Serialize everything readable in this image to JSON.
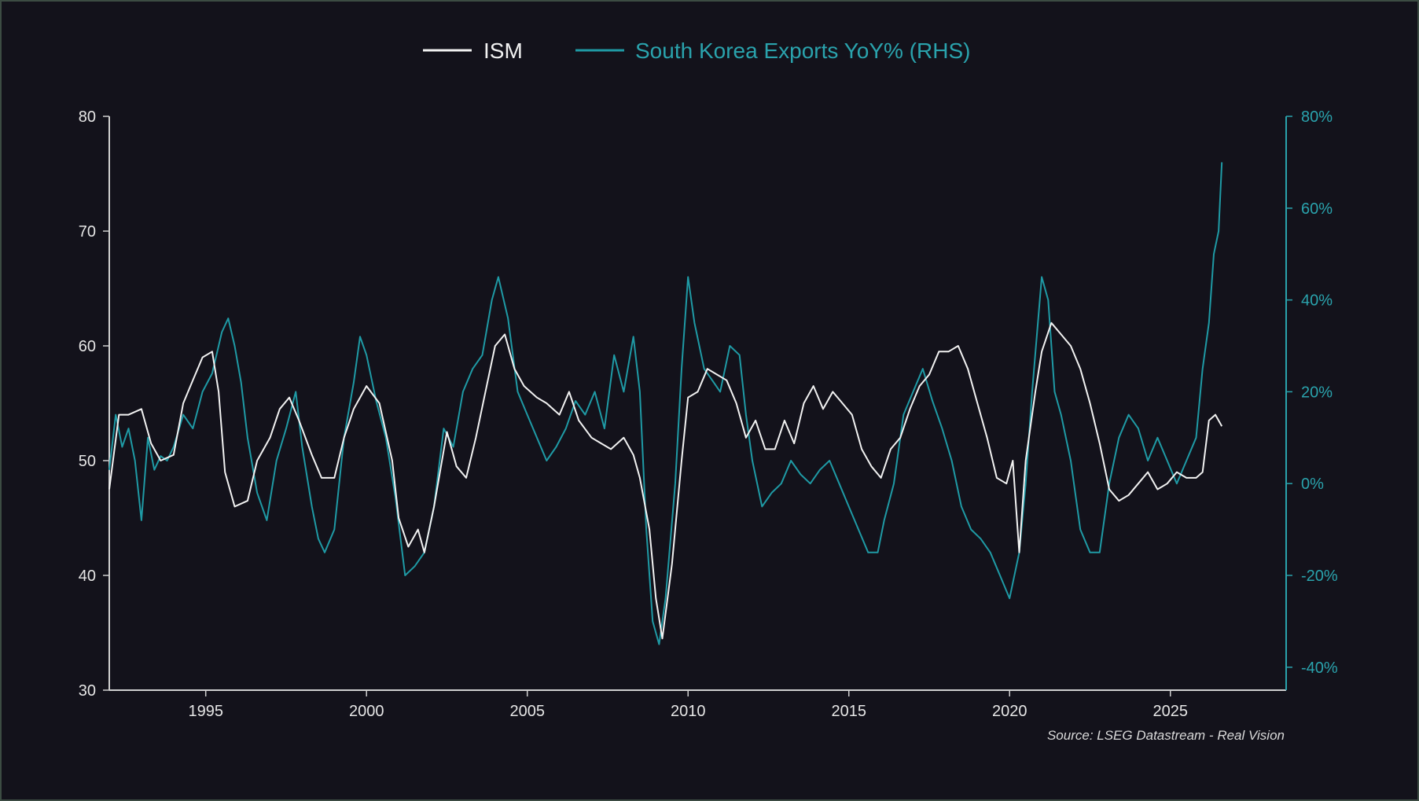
{
  "chart_data": {
    "type": "line",
    "title": "",
    "legend": {
      "position": "top-center",
      "items": [
        "ISM",
        "South Korea Exports YoY% (RHS)"
      ]
    },
    "x_axis": {
      "range": [
        1992.0,
        2028.6
      ],
      "ticks": [
        "1995",
        "2000",
        "2005",
        "2010",
        "2015",
        "2020",
        "2025"
      ]
    },
    "y_left": {
      "range": [
        30,
        80
      ],
      "ticks": [
        "80",
        "70",
        "60",
        "50",
        "40",
        "30"
      ]
    },
    "y_right": {
      "range": [
        -45,
        80
      ],
      "ticks": [
        "80%",
        "60%",
        "40%",
        "20%",
        "0%",
        "-20%",
        "-40%"
      ]
    },
    "source": "Source: LSEG Datastream - Real Vision",
    "colors": {
      "background": "#13121b",
      "ism": "#f2f2f2",
      "korea": "#1f9aa5",
      "axis_left": "#d0d0d0",
      "axis_right": "#2aa3ad"
    },
    "series": [
      {
        "name": "ISM",
        "axis": "left",
        "x": [
          1992.0,
          1992.3,
          1992.6,
          1993.0,
          1993.3,
          1993.6,
          1994.0,
          1994.3,
          1994.6,
          1994.9,
          1995.2,
          1995.4,
          1995.6,
          1995.9,
          1996.3,
          1996.6,
          1997.0,
          1997.3,
          1997.6,
          1997.9,
          1998.3,
          1998.6,
          1999.0,
          1999.3,
          1999.6,
          2000.0,
          2000.4,
          2000.8,
          2001.0,
          2001.3,
          2001.6,
          2001.8,
          2002.1,
          2002.5,
          2002.8,
          2003.1,
          2003.4,
          2003.7,
          2004.0,
          2004.3,
          2004.6,
          2004.9,
          2005.3,
          2005.6,
          2006.0,
          2006.3,
          2006.6,
          2007.0,
          2007.3,
          2007.6,
          2008.0,
          2008.3,
          2008.5,
          2008.8,
          2009.0,
          2009.2,
          2009.5,
          2009.8,
          2010.0,
          2010.3,
          2010.6,
          2010.9,
          2011.2,
          2011.5,
          2011.8,
          2012.1,
          2012.4,
          2012.7,
          2013.0,
          2013.3,
          2013.6,
          2013.9,
          2014.2,
          2014.5,
          2014.8,
          2015.1,
          2015.4,
          2015.7,
          2016.0,
          2016.3,
          2016.6,
          2016.9,
          2017.2,
          2017.5,
          2017.8,
          2018.1,
          2018.4,
          2018.7,
          2019.0,
          2019.3,
          2019.6,
          2019.9,
          2020.1,
          2020.3,
          2020.5,
          2020.8,
          2021.0,
          2021.3,
          2021.6,
          2021.9,
          2022.2,
          2022.5,
          2022.8,
          2023.1,
          2023.4,
          2023.7,
          2024.0,
          2024.3,
          2024.6,
          2024.9,
          2025.2,
          2025.5,
          2025.8,
          2026.0,
          2026.2,
          2026.4,
          2026.6
        ],
        "y": [
          47.5,
          54,
          54,
          54.5,
          51.5,
          50,
          50.5,
          55,
          57,
          59,
          59.5,
          56,
          49,
          46,
          46.5,
          50,
          52,
          54.5,
          55.5,
          53.5,
          50.5,
          48.5,
          48.5,
          52,
          54.5,
          56.5,
          55,
          50,
          45,
          42.5,
          44,
          42,
          46,
          52.5,
          49.5,
          48.5,
          52,
          56,
          60,
          61,
          58,
          56.5,
          55.5,
          55,
          54,
          56,
          53.5,
          52,
          51.5,
          51,
          52,
          50.5,
          48.5,
          44,
          38,
          34.5,
          41,
          50,
          55.5,
          56,
          58,
          57.5,
          57,
          55,
          52,
          53.5,
          51,
          51,
          53.5,
          51.5,
          55,
          56.5,
          54.5,
          56,
          55,
          54,
          51,
          49.5,
          48.5,
          51,
          52,
          54.5,
          56.5,
          57.5,
          59.5,
          59.5,
          60,
          58,
          55,
          52,
          48.5,
          48,
          50,
          42,
          50,
          56,
          59.5,
          62,
          61,
          60,
          58,
          55,
          51.5,
          47.5,
          46.5,
          47,
          48,
          49,
          47.5,
          48,
          49,
          48.5,
          48.5,
          49,
          53.5,
          54,
          53
        ]
      },
      {
        "name": "South Korea Exports YoY% (RHS)",
        "axis": "right",
        "x": [
          1992.0,
          1992.2,
          1992.4,
          1992.6,
          1992.8,
          1993.0,
          1993.2,
          1993.4,
          1993.6,
          1993.8,
          1994.0,
          1994.3,
          1994.6,
          1994.9,
          1995.2,
          1995.5,
          1995.7,
          1995.9,
          1996.1,
          1996.3,
          1996.6,
          1996.9,
          1997.2,
          1997.5,
          1997.8,
          1998.0,
          1998.3,
          1998.5,
          1998.7,
          1999.0,
          1999.3,
          1999.6,
          1999.8,
          2000.0,
          2000.3,
          2000.6,
          2000.9,
          2001.2,
          2001.5,
          2001.8,
          2002.1,
          2002.4,
          2002.7,
          2003.0,
          2003.3,
          2003.6,
          2003.9,
          2004.1,
          2004.4,
          2004.7,
          2005.0,
          2005.3,
          2005.6,
          2005.9,
          2006.2,
          2006.5,
          2006.8,
          2007.1,
          2007.4,
          2007.7,
          2008.0,
          2008.3,
          2008.5,
          2008.7,
          2008.9,
          2009.1,
          2009.3,
          2009.6,
          2009.8,
          2010.0,
          2010.2,
          2010.5,
          2010.8,
          2011.0,
          2011.3,
          2011.6,
          2011.8,
          2012.0,
          2012.3,
          2012.6,
          2012.9,
          2013.2,
          2013.5,
          2013.8,
          2014.1,
          2014.4,
          2014.7,
          2015.0,
          2015.3,
          2015.6,
          2015.9,
          2016.1,
          2016.4,
          2016.7,
          2017.0,
          2017.3,
          2017.6,
          2017.9,
          2018.2,
          2018.5,
          2018.8,
          2019.1,
          2019.4,
          2019.7,
          2020.0,
          2020.3,
          2020.5,
          2020.7,
          2021.0,
          2021.2,
          2021.4,
          2021.6,
          2021.9,
          2022.2,
          2022.5,
          2022.8,
          2023.1,
          2023.4,
          2023.7,
          2024.0,
          2024.3,
          2024.6,
          2024.9,
          2025.2,
          2025.5,
          2025.8,
          2026.0,
          2026.2,
          2026.35,
          2026.5,
          2026.6
        ],
        "y": [
          3,
          15,
          8,
          12,
          5,
          -8,
          10,
          3,
          6,
          5,
          8,
          15,
          12,
          20,
          24,
          33,
          36,
          30,
          22,
          10,
          -2,
          -8,
          5,
          12,
          20,
          8,
          -5,
          -12,
          -15,
          -10,
          10,
          22,
          32,
          28,
          18,
          10,
          -3,
          -20,
          -18,
          -15,
          -5,
          12,
          8,
          20,
          25,
          28,
          40,
          45,
          36,
          20,
          15,
          10,
          5,
          8,
          12,
          18,
          15,
          20,
          12,
          28,
          20,
          32,
          20,
          -10,
          -30,
          -35,
          -25,
          0,
          25,
          45,
          35,
          25,
          22,
          20,
          30,
          28,
          15,
          5,
          -5,
          -2,
          0,
          5,
          2,
          0,
          3,
          5,
          0,
          -5,
          -10,
          -15,
          -15,
          -8,
          0,
          15,
          20,
          25,
          18,
          12,
          5,
          -5,
          -10,
          -12,
          -15,
          -20,
          -25,
          -15,
          0,
          20,
          45,
          40,
          20,
          15,
          5,
          -10,
          -15,
          -15,
          0,
          10,
          15,
          12,
          5,
          10,
          5,
          0,
          5,
          10,
          25,
          35,
          50,
          55,
          70
        ]
      }
    ]
  }
}
